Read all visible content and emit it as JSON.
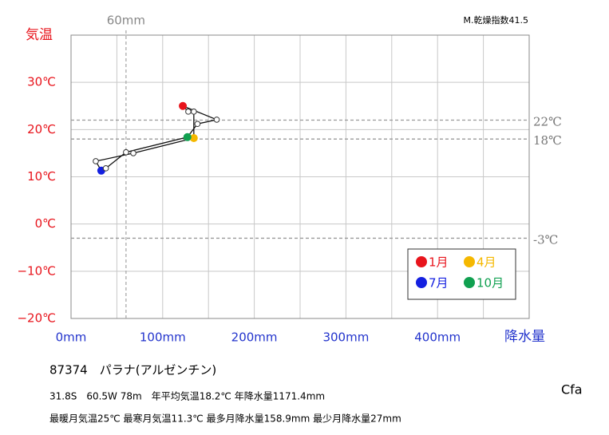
{
  "chart_data": {
    "type": "climograph",
    "y_axis_label": "気温",
    "x_axis_label": "降水量",
    "annotation": "M.乾燥指数41.5",
    "xlim": [
      0,
      500
    ],
    "ylim": [
      -20,
      40
    ],
    "xticks": [
      {
        "value": 0,
        "label": "0mm"
      },
      {
        "value": 100,
        "label": "100mm"
      },
      {
        "value": 200,
        "label": "200mm"
      },
      {
        "value": 300,
        "label": "300mm"
      },
      {
        "value": 400,
        "label": "400mm"
      }
    ],
    "x_minor_ticks": [
      50,
      150,
      250,
      350,
      450
    ],
    "yticks": [
      {
        "value": -20,
        "label": "−20℃"
      },
      {
        "value": -10,
        "label": "−10℃"
      },
      {
        "value": 0,
        "label": "0℃"
      },
      {
        "value": 10,
        "label": "10℃"
      },
      {
        "value": 20,
        "label": "20℃"
      },
      {
        "value": 30,
        "label": "30℃"
      }
    ],
    "reference_y": [
      {
        "value": 22,
        "label": "22℃"
      },
      {
        "value": 18,
        "label": "18℃"
      },
      {
        "value": -3,
        "label": "-3℃"
      }
    ],
    "reference_x": [
      {
        "value": 60,
        "label": "60mm"
      }
    ],
    "precipitation": [
      122,
      128,
      134,
      134,
      68,
      27,
      33,
      38,
      60,
      127,
      138,
      159
    ],
    "temperature": [
      25.0,
      23.8,
      23.8,
      18.2,
      15.0,
      13.3,
      11.3,
      11.8,
      15.2,
      18.4,
      21.2,
      22.1
    ],
    "highlights": [
      {
        "name": "1月",
        "color": "#e8141c",
        "index": 0
      },
      {
        "name": "4月",
        "color": "#f5b800",
        "index": 3
      },
      {
        "name": "7月",
        "color": "#1420e0",
        "index": 6
      },
      {
        "name": "10月",
        "color": "#10a050",
        "index": 9
      }
    ],
    "grid": true
  },
  "station": {
    "title": "87374　パラナ(アルゼンチン)",
    "line1": "31.8S　60.5W 78m　年平均気温18.2℃ 年降水量1171.4mm",
    "line2": "最暖月気温25℃ 最寒月気温11.3℃ 最多月降水量158.9mm 最少月降水量27mm",
    "climate": "Cfa"
  }
}
